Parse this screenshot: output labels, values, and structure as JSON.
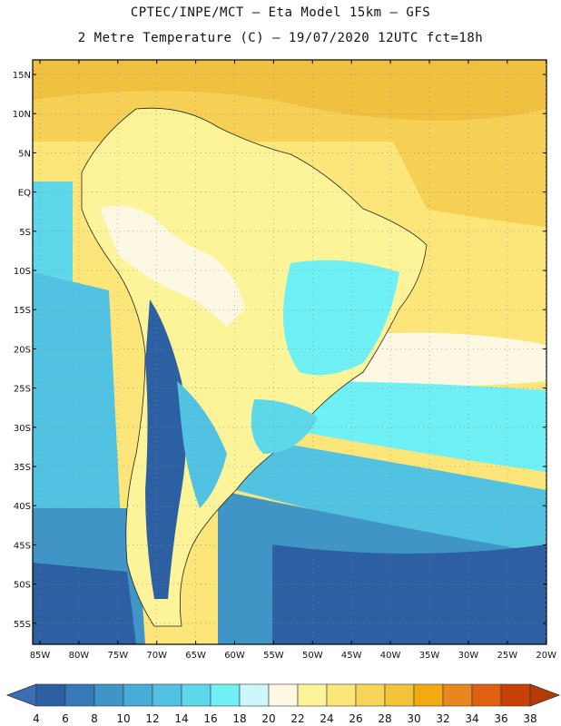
{
  "header": {
    "line1": "CPTEC/INPE/MCT –  Eta Model 15km – GFS",
    "line2": "2 Metre Temperature (C) – 19/07/2020 12UTC fct=18h"
  },
  "map": {
    "lat_labels": [
      "15N",
      "10N",
      "5N",
      "EQ",
      "5S",
      "10S",
      "15S",
      "20S",
      "25S",
      "30S",
      "35S",
      "40S",
      "45S",
      "50S",
      "55S"
    ],
    "lon_labels": [
      "85W",
      "80W",
      "75W",
      "70W",
      "65W",
      "60W",
      "55W",
      "50W",
      "45W",
      "40W",
      "35W",
      "30W",
      "25W",
      "20W"
    ]
  },
  "legend": {
    "labels": [
      "4",
      "6",
      "8",
      "10",
      "12",
      "14",
      "16",
      "18",
      "20",
      "22",
      "24",
      "26",
      "28",
      "30",
      "32",
      "34",
      "36",
      "38"
    ],
    "colors": [
      "#2d5fa3",
      "#3778b6",
      "#3f95c6",
      "#48acd8",
      "#52c2e2",
      "#5cd8ea",
      "#6ef0f5",
      "#cdf7fb",
      "#fdf8e4",
      "#fdf49a",
      "#fce67a",
      "#f8d55a",
      "#f3c43a",
      "#f1ab10",
      "#e8871d",
      "#df6010",
      "#c84108"
    ],
    "low_color": "#3b6fb4",
    "high_color": "#b63a06"
  }
}
